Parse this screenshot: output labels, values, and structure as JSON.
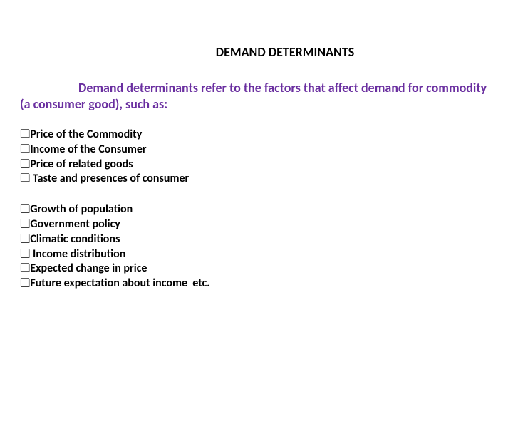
{
  "title": "DEMAND DETERMINANTS",
  "intro_color": "#6a2fa0",
  "intro": "Demand determinants refer to the factors that affect demand for commodity (a consumer good), such as:",
  "bullet_glyph": "❑",
  "group1": {
    "items": [
      {
        "space_after_bullet": false,
        "text": "Price of the Commodity"
      },
      {
        "space_after_bullet": false,
        "text": "Income of the Consumer"
      },
      {
        "space_after_bullet": false,
        "text": "Price of related goods"
      },
      {
        "space_after_bullet": true,
        "text": "Taste and presences of consumer"
      }
    ]
  },
  "group2": {
    "items": [
      {
        "space_after_bullet": false,
        "text": "Growth of population"
      },
      {
        "space_after_bullet": false,
        "text": "Government policy"
      },
      {
        "space_after_bullet": false,
        "text": "Climatic conditions"
      },
      {
        "space_after_bullet": true,
        "text": "Income distribution"
      },
      {
        "space_after_bullet": false,
        "text": "Expected change in price"
      },
      {
        "space_after_bullet": false,
        "text": "Future expectation about income  etc."
      }
    ]
  }
}
